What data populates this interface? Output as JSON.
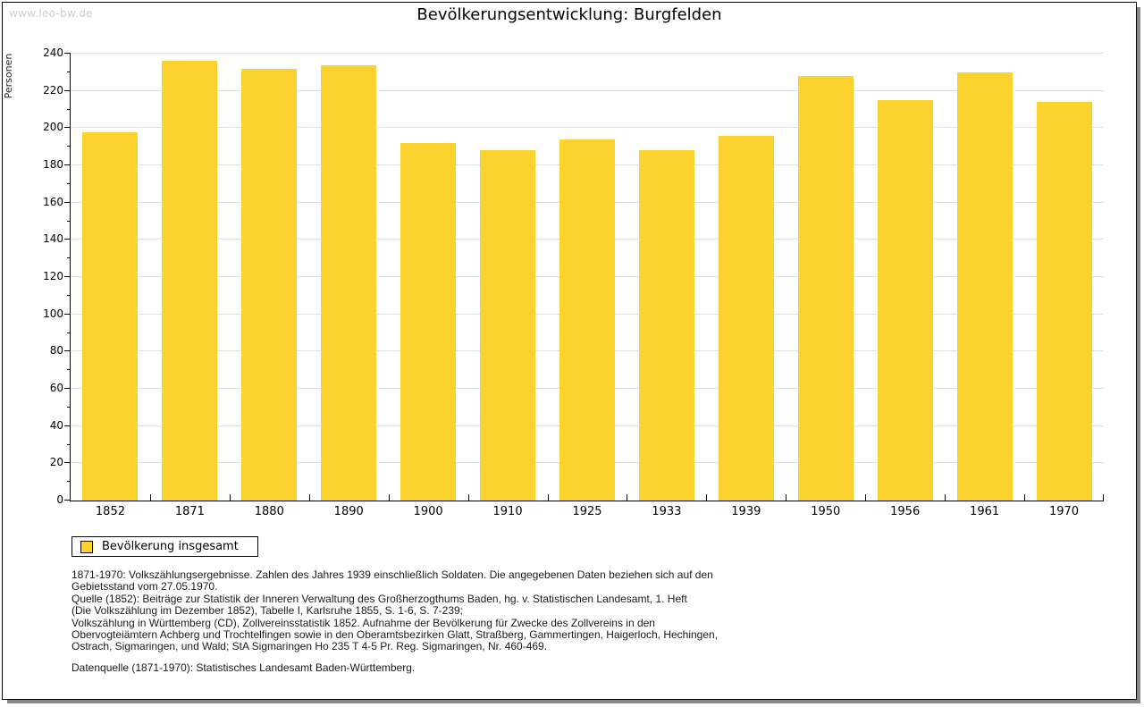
{
  "watermark": "www.leo-bw.de",
  "chart_data": {
    "type": "bar",
    "title": "Bevölkerungsentwicklung: Burgfelden",
    "ylabel": "Personen",
    "xlabel": "",
    "categories": [
      "1852",
      "1871",
      "1880",
      "1890",
      "1900",
      "1910",
      "1925",
      "1933",
      "1939",
      "1950",
      "1956",
      "1961",
      "1970"
    ],
    "values": [
      198,
      236,
      232,
      234,
      192,
      188,
      194,
      188,
      196,
      228,
      215,
      230,
      214
    ],
    "ylim": [
      0,
      240
    ],
    "y_major_step": 20,
    "y_minor_step": 10,
    "grid": "horizontal-major",
    "legend_position": "bottom-left",
    "legend_label": "Bevölkerung insgesamt",
    "bar_color": "#FCD32E"
  },
  "colors": {
    "bar": "#FCD32E",
    "gridline": "#E0E0E0",
    "axis": "#000000",
    "watermark": "#CCCCCC",
    "frame_shadow": "#888888",
    "text": "#1A1A1A"
  },
  "footnotes": {
    "lines": [
      "1871-1970: Volkszählungsergebnisse. Zahlen des Jahres 1939 einschließlich Soldaten. Die angegebenen Daten beziehen sich auf den",
      "Gebietsstand vom 27.05.1970.",
      "Quelle (1852): Beiträge zur Statistik der Inneren Verwaltung des Großherzogthums Baden, hg. v. Statistischen Landesamt, 1. Heft",
      "(Die Volkszählung im Dezember 1852), Tabelle I, Karlsruhe 1855, S. 1-6, S. 7-239;",
      "Volkszählung in Württemberg (CD), Zollvereinsstatistik 1852. Aufnahme der Bevölkerung für Zwecke des Zollvereins in den",
      "Obervogteiämtern Achberg und Trochtelfingen sowie in den Oberamtsbezirken Glatt, Straßberg, Gammertingen, Haigerloch, Hechingen,",
      "Ostrach, Sigmaringen, und Wald; StA Sigmaringen Ho 235 T 4-5 Pr. Reg. Sigmaringen, Nr. 460-469."
    ],
    "datasource": "Datenquelle (1871-1970): Statistisches Landesamt Baden-Württemberg."
  }
}
